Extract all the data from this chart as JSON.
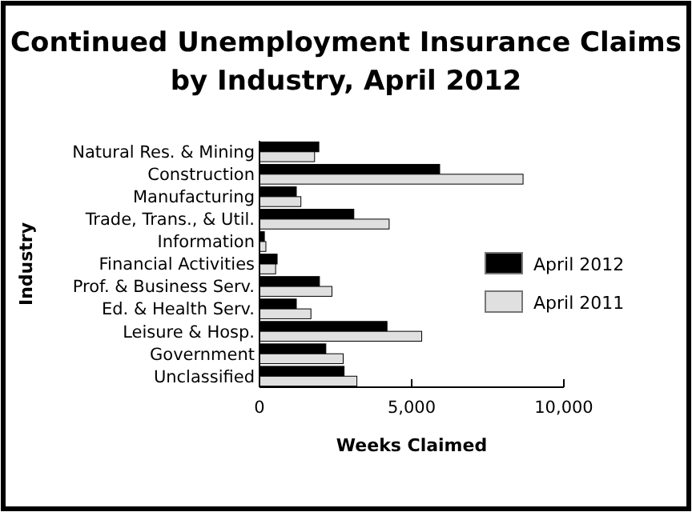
{
  "chart_data": {
    "type": "bar",
    "orientation": "horizontal",
    "title": "Continued Unemployment Insurance Claims by Industry, April 2012",
    "xlabel": "Weeks Claimed",
    "ylabel": "Industry",
    "categories": [
      "Natural Res. & Mining",
      "Construction",
      "Manufacturing",
      "Trade, Trans., & Util.",
      "Information",
      "Financial Activities",
      "Prof. & Business Serv.",
      "Ed. & Health Serv.",
      "Leisure & Hosp.",
      "Government",
      "Unclassified"
    ],
    "series": [
      {
        "name": "April 2012",
        "color": "#000000",
        "values": [
          1950,
          5920,
          1210,
          3100,
          160,
          580,
          1970,
          1210,
          4190,
          2180,
          2780
        ]
      },
      {
        "name": "April 2011",
        "color": "#e0e0e0",
        "values": [
          1810,
          8660,
          1360,
          4260,
          210,
          530,
          2380,
          1690,
          5330,
          2750,
          3200
        ]
      }
    ],
    "xlim": [
      0,
      10000
    ],
    "xticks": [
      0,
      {
        "value": 5000,
        "label": "5,000"
      },
      {
        "value": 10000,
        "label": "10,000"
      }
    ],
    "legend": "right",
    "grid": false
  }
}
